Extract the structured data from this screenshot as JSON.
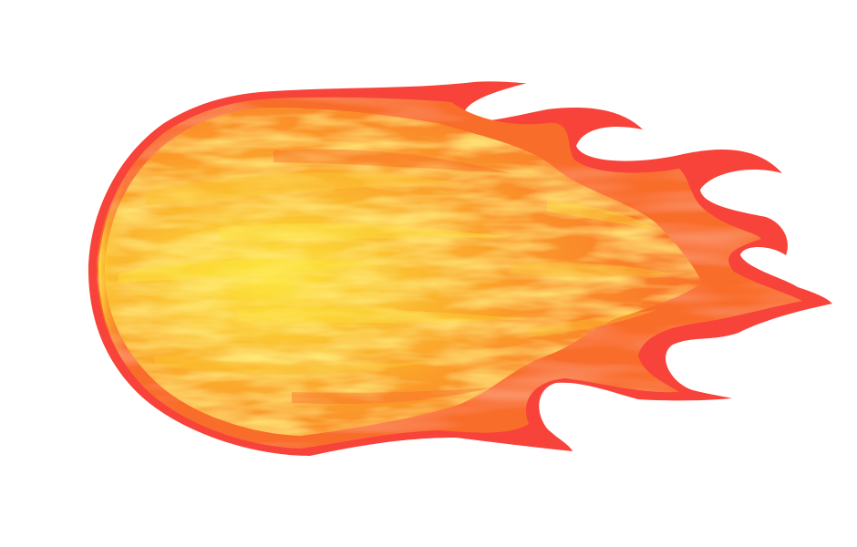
{
  "illustration": {
    "icon": "fireball-icon",
    "colors": {
      "background": "#ffffff",
      "outer_flame": "#f7433a",
      "mid_flame": "#f96d2c",
      "inner_flame": "#fb9a2a",
      "core": "#fbc532",
      "highlight": "#fde53c"
    }
  }
}
